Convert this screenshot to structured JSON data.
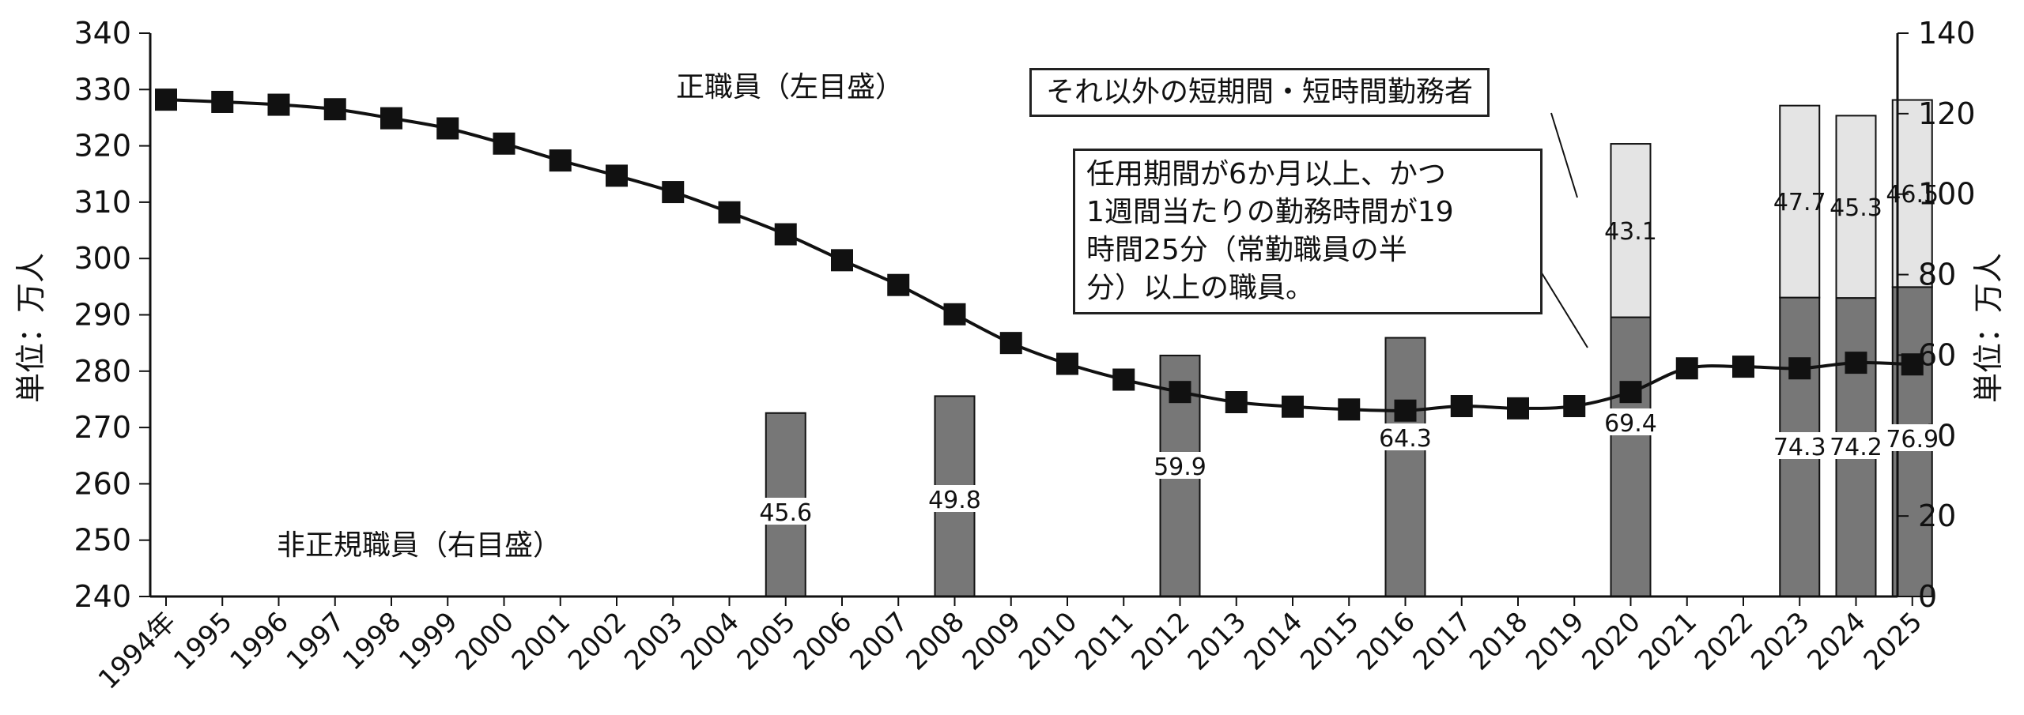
{
  "chart_data": {
    "type": "bar+line",
    "x_categories": [
      "1994年",
      "1995",
      "1996",
      "1997",
      "1998",
      "1999",
      "2000",
      "2001",
      "2002",
      "2003",
      "2004",
      "2005",
      "2006",
      "2007",
      "2008",
      "2009",
      "2010",
      "2011",
      "2012",
      "2013",
      "2014",
      "2015",
      "2016",
      "2017",
      "2018",
      "2019",
      "2020",
      "2021",
      "2022",
      "2023",
      "2024",
      "2025"
    ],
    "left_axis": {
      "label": "単位：万人",
      "ylim": [
        240,
        340
      ],
      "ticks": [
        240,
        250,
        260,
        270,
        280,
        290,
        300,
        310,
        320,
        330,
        340
      ]
    },
    "right_axis": {
      "label": "単位：万人",
      "ylim": [
        0,
        140
      ],
      "ticks": [
        0,
        20,
        40,
        60,
        80,
        100,
        120,
        140
      ]
    },
    "line_series": {
      "name": "正職員（左目盛）",
      "axis": "left",
      "values": [
        328.2,
        327.8,
        327.3,
        326.5,
        324.9,
        323.1,
        320.4,
        317.4,
        314.7,
        311.8,
        308.2,
        304.3,
        299.7,
        295.3,
        290.1,
        285.0,
        281.3,
        278.5,
        276.3,
        274.5,
        273.7,
        273.2,
        273.0,
        273.8,
        273.4,
        273.8,
        276.3,
        280.5,
        280.8,
        280.5,
        281.5,
        281.2
      ]
    },
    "bar_series": [
      {
        "name": "任用期間が6か月以上、かつ1週間当たりの勤務時間が19時間25分（常勤職員の半分）以上の職員。",
        "axis": "right",
        "color": "#777777",
        "categories": [
          "2005",
          "2008",
          "2012",
          "2016",
          "2020",
          "2023",
          "2024",
          "2025"
        ],
        "values": [
          45.6,
          49.8,
          59.9,
          64.3,
          69.4,
          74.3,
          74.2,
          76.9
        ]
      },
      {
        "name": "それ以外の短期間・短時間勤務者",
        "axis": "right",
        "color": "#e4e4e4",
        "categories": [
          "2020",
          "2023",
          "2024",
          "2025"
        ],
        "values": [
          43.1,
          47.7,
          45.3,
          46.5
        ]
      }
    ],
    "annotations": {
      "regular_label": "正職員（左目盛）",
      "nonregular_label": "非正規職員（右目盛）",
      "callout_other": "それ以外の短期間・短時間勤務者",
      "callout_fixed_lines": [
        "任用期間が6か月以上、かつ",
        "1週間当たりの勤務時間が19",
        "時間25分（常勤職員の半",
        "分）以上の職員。"
      ]
    }
  }
}
